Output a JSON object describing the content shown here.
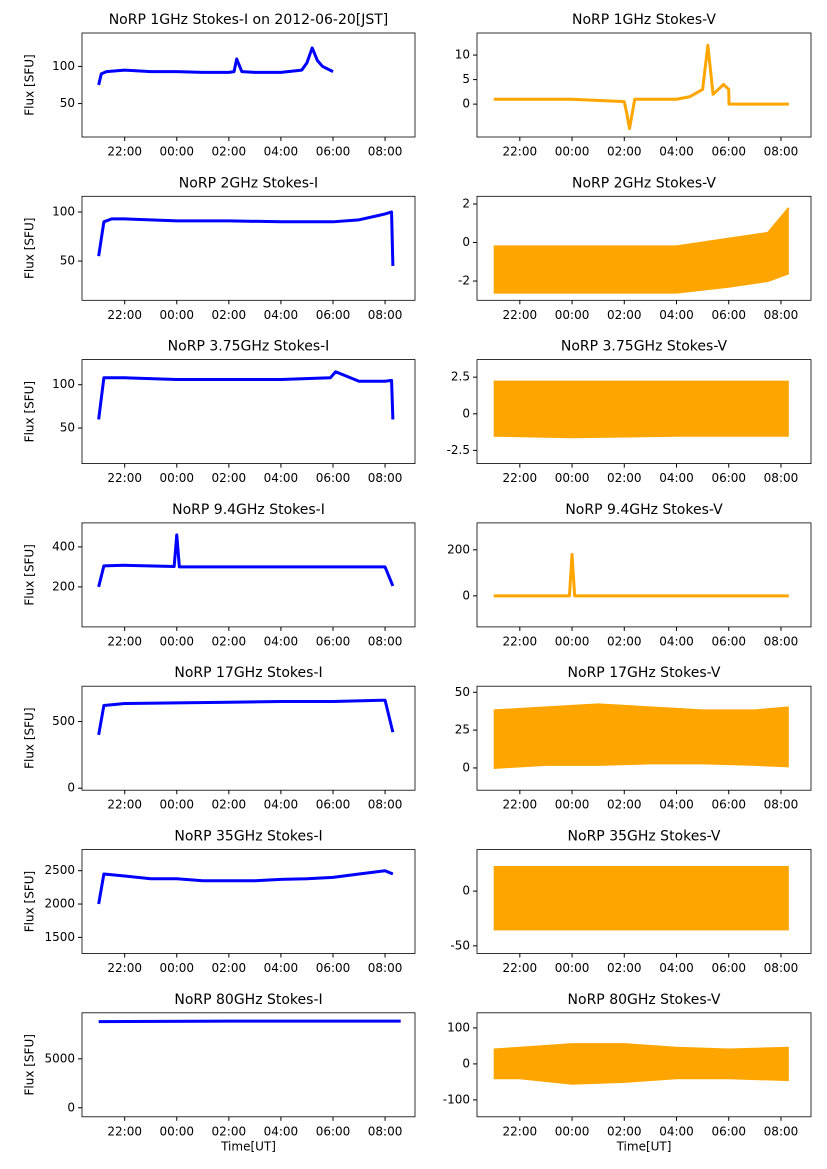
{
  "chart_data": [
    {
      "type": "line",
      "title": "NoRP 1GHz Stokes-I on 2012-06-20[JST]",
      "ylabel": "Flux [SFU]",
      "color": "#0000ff",
      "x": [
        21.0,
        21.1,
        21.3,
        22,
        23,
        24,
        25,
        26,
        26.2,
        26.3,
        26.5,
        27,
        28,
        28.8,
        29.0,
        29.2,
        29.4,
        29.6,
        30.0
      ],
      "values": [
        75,
        90,
        93,
        95,
        93,
        93,
        92,
        92,
        93,
        110,
        93,
        92,
        92,
        95,
        105,
        125,
        108,
        100,
        93
      ],
      "xlim": [
        20.36,
        33.15
      ],
      "xticks": [
        {
          "value": 22,
          "label": "22:00"
        },
        {
          "value": 24,
          "label": "00:00"
        },
        {
          "value": 26,
          "label": "02:00"
        },
        {
          "value": 28,
          "label": "04:00"
        },
        {
          "value": 30,
          "label": "06:00"
        },
        {
          "value": 32,
          "label": "08:00"
        }
      ],
      "ylim": [
        5,
        145
      ],
      "yticks": [
        50,
        100
      ]
    },
    {
      "type": "line",
      "title": "NoRP 1GHz Stokes-V",
      "color": "#ffa500",
      "x": [
        21.0,
        22,
        24,
        26,
        26.1,
        26.2,
        26.4,
        27,
        28,
        28.5,
        29,
        29.2,
        29.4,
        29.6,
        29.8,
        30.0,
        30.01,
        32.3
      ],
      "values": [
        1,
        1,
        1,
        0.5,
        -2,
        -5,
        1,
        1,
        1,
        1.5,
        3,
        12,
        2,
        3,
        4,
        3,
        0,
        0
      ],
      "xlim": [
        20.36,
        33.15
      ],
      "xticks": [
        {
          "value": 22,
          "label": "22:00"
        },
        {
          "value": 24,
          "label": "00:00"
        },
        {
          "value": 26,
          "label": "02:00"
        },
        {
          "value": 28,
          "label": "04:00"
        },
        {
          "value": 30,
          "label": "06:00"
        },
        {
          "value": 32,
          "label": "08:00"
        }
      ],
      "ylim": [
        -6.7,
        14.5
      ],
      "yticks": [
        0,
        5,
        10
      ]
    },
    {
      "type": "line",
      "title": "NoRP 2GHz Stokes-I",
      "ylabel": "Flux [SFU]",
      "color": "#0000ff",
      "x": [
        21.0,
        21.2,
        21.5,
        22,
        24,
        26,
        28,
        30,
        31,
        32,
        32.25,
        32.3
      ],
      "values": [
        55,
        90,
        93,
        93,
        91,
        91,
        90,
        90,
        92,
        98,
        100,
        45
      ],
      "xlim": [
        20.36,
        33.15
      ],
      "xticks": [
        {
          "value": 22,
          "label": "22:00"
        },
        {
          "value": 24,
          "label": "00:00"
        },
        {
          "value": 26,
          "label": "02:00"
        },
        {
          "value": 28,
          "label": "04:00"
        },
        {
          "value": 30,
          "label": "06:00"
        },
        {
          "value": 32,
          "label": "08:00"
        }
      ],
      "ylim": [
        10,
        116
      ],
      "yticks": [
        50,
        100
      ]
    },
    {
      "type": "band",
      "title": "NoRP 2GHz Stokes-V",
      "color": "#ffa500",
      "x": [
        21,
        24,
        28,
        30,
        31.5,
        32.3
      ],
      "low": [
        -2.6,
        -2.6,
        -2.6,
        -2.3,
        -2,
        -1.6
      ],
      "high": [
        -0.2,
        -0.2,
        -0.2,
        0.2,
        0.5,
        1.8
      ],
      "xlim": [
        20.36,
        33.15
      ],
      "xticks": [
        {
          "value": 22,
          "label": "22:00"
        },
        {
          "value": 24,
          "label": "00:00"
        },
        {
          "value": 26,
          "label": "02:00"
        },
        {
          "value": 28,
          "label": "04:00"
        },
        {
          "value": 30,
          "label": "06:00"
        },
        {
          "value": 32,
          "label": "08:00"
        }
      ],
      "ylim": [
        -3,
        2.4
      ],
      "yticks": [
        -2,
        0,
        2
      ]
    },
    {
      "type": "line",
      "title": "NoRP 3.75GHz Stokes-I",
      "ylabel": "Flux [SFU]",
      "color": "#0000ff",
      "x": [
        21.0,
        21.2,
        22,
        24,
        26,
        28,
        29.9,
        30.1,
        31,
        32,
        32.25,
        32.3
      ],
      "values": [
        60,
        108,
        108,
        106,
        106,
        106,
        108,
        115,
        104,
        104,
        105,
        60
      ],
      "xlim": [
        20.36,
        33.15
      ],
      "xticks": [
        {
          "value": 22,
          "label": "22:00"
        },
        {
          "value": 24,
          "label": "00:00"
        },
        {
          "value": 26,
          "label": "02:00"
        },
        {
          "value": 28,
          "label": "04:00"
        },
        {
          "value": 30,
          "label": "06:00"
        },
        {
          "value": 32,
          "label": "08:00"
        }
      ],
      "ylim": [
        9,
        129
      ],
      "yticks": [
        50,
        100
      ]
    },
    {
      "type": "band",
      "title": "NoRP 3.75GHz Stokes-V",
      "color": "#ffa500",
      "x": [
        21,
        24,
        28,
        32.3
      ],
      "low": [
        -1.5,
        -1.6,
        -1.5,
        -1.5
      ],
      "high": [
        2.2,
        2.2,
        2.2,
        2.2
      ],
      "xlim": [
        20.36,
        33.15
      ],
      "xticks": [
        {
          "value": 22,
          "label": "22:00"
        },
        {
          "value": 24,
          "label": "00:00"
        },
        {
          "value": 26,
          "label": "02:00"
        },
        {
          "value": 28,
          "label": "04:00"
        },
        {
          "value": 30,
          "label": "06:00"
        },
        {
          "value": 32,
          "label": "08:00"
        }
      ],
      "ylim": [
        -3.4,
        3.7
      ],
      "yticks": [
        -2.5,
        0.0,
        2.5
      ]
    },
    {
      "type": "line",
      "title": "NoRP 9.4GHz Stokes-I",
      "ylabel": "Flux [SFU]",
      "color": "#0000ff",
      "x": [
        21.0,
        21.2,
        22,
        23.9,
        24.0,
        24.1,
        26,
        28,
        30,
        32,
        32.3
      ],
      "values": [
        200,
        305,
        308,
        302,
        460,
        300,
        300,
        300,
        300,
        300,
        205
      ],
      "xlim": [
        20.36,
        33.15
      ],
      "xticks": [
        {
          "value": 22,
          "label": "22:00"
        },
        {
          "value": 24,
          "label": "00:00"
        },
        {
          "value": 26,
          "label": "02:00"
        },
        {
          "value": 28,
          "label": "04:00"
        },
        {
          "value": 30,
          "label": "06:00"
        },
        {
          "value": 32,
          "label": "08:00"
        }
      ],
      "ylim": [
        0,
        520
      ],
      "yticks": [
        200,
        400
      ]
    },
    {
      "type": "line",
      "title": "NoRP 9.4GHz Stokes-V",
      "color": "#ffa500",
      "x": [
        21,
        23.9,
        24.0,
        24.1,
        32.3
      ],
      "values": [
        0,
        0,
        180,
        0,
        0
      ],
      "xlim": [
        20.36,
        33.15
      ],
      "xticks": [
        {
          "value": 22,
          "label": "22:00"
        },
        {
          "value": 24,
          "label": "00:00"
        },
        {
          "value": 26,
          "label": "02:00"
        },
        {
          "value": 28,
          "label": "04:00"
        },
        {
          "value": 30,
          "label": "06:00"
        },
        {
          "value": 32,
          "label": "08:00"
        }
      ],
      "ylim": [
        -135,
        317
      ],
      "yticks": [
        0,
        200
      ]
    },
    {
      "type": "line",
      "title": "NoRP 17GHz Stokes-I",
      "ylabel": "Flux [SFU]",
      "color": "#0000ff",
      "x": [
        21.0,
        21.2,
        22,
        24,
        26,
        28,
        30,
        32,
        32.3
      ],
      "values": [
        400,
        620,
        635,
        640,
        645,
        650,
        650,
        660,
        420
      ],
      "xlim": [
        20.36,
        33.15
      ],
      "xticks": [
        {
          "value": 22,
          "label": "22:00"
        },
        {
          "value": 24,
          "label": "00:00"
        },
        {
          "value": 26,
          "label": "02:00"
        },
        {
          "value": 28,
          "label": "04:00"
        },
        {
          "value": 30,
          "label": "06:00"
        },
        {
          "value": 32,
          "label": "08:00"
        }
      ],
      "ylim": [
        -15,
        765
      ],
      "yticks": [
        0,
        500
      ]
    },
    {
      "type": "band",
      "title": "NoRP 17GHz Stokes-V",
      "color": "#ffa500",
      "x": [
        21,
        23,
        25,
        27,
        29,
        31,
        32.3
      ],
      "low": [
        0,
        2,
        2,
        3,
        3,
        2,
        1
      ],
      "high": [
        38,
        40,
        42,
        40,
        38,
        38,
        40
      ],
      "xlim": [
        20.36,
        33.15
      ],
      "xticks": [
        {
          "value": 22,
          "label": "22:00"
        },
        {
          "value": 24,
          "label": "00:00"
        },
        {
          "value": 26,
          "label": "02:00"
        },
        {
          "value": 28,
          "label": "04:00"
        },
        {
          "value": 30,
          "label": "06:00"
        },
        {
          "value": 32,
          "label": "08:00"
        }
      ],
      "ylim": [
        -14.7,
        54
      ],
      "yticks": [
        0,
        25,
        50
      ]
    },
    {
      "type": "line",
      "title": "NoRP 35GHz Stokes-I",
      "ylabel": "Flux [SFU]",
      "color": "#0000ff",
      "x": [
        21.0,
        21.2,
        22,
        23,
        24,
        25,
        26,
        27,
        28,
        29,
        30,
        31,
        32,
        32.3
      ],
      "values": [
        2000,
        2450,
        2420,
        2380,
        2380,
        2350,
        2350,
        2350,
        2370,
        2380,
        2400,
        2450,
        2500,
        2450
      ],
      "xlim": [
        20.36,
        33.15
      ],
      "xticks": [
        {
          "value": 22,
          "label": "22:00"
        },
        {
          "value": 24,
          "label": "00:00"
        },
        {
          "value": 26,
          "label": "02:00"
        },
        {
          "value": 28,
          "label": "04:00"
        },
        {
          "value": 30,
          "label": "06:00"
        },
        {
          "value": 32,
          "label": "08:00"
        }
      ],
      "ylim": [
        1258,
        2818
      ],
      "yticks": [
        1500,
        2000,
        2500
      ]
    },
    {
      "type": "band",
      "title": "NoRP 35GHz Stokes-V",
      "color": "#ffa500",
      "x": [
        21,
        32.3
      ],
      "low": [
        -35,
        -35
      ],
      "high": [
        22,
        22
      ],
      "xlim": [
        20.36,
        33.15
      ],
      "xticks": [
        {
          "value": 22,
          "label": "22:00"
        },
        {
          "value": 24,
          "label": "00:00"
        },
        {
          "value": 26,
          "label": "02:00"
        },
        {
          "value": 28,
          "label": "04:00"
        },
        {
          "value": 30,
          "label": "06:00"
        },
        {
          "value": 32,
          "label": "08:00"
        }
      ],
      "ylim": [
        -57,
        38
      ],
      "yticks": [
        -50,
        0
      ]
    },
    {
      "type": "line",
      "title": "NoRP 80GHz Stokes-I",
      "ylabel": "Flux [SFU]",
      "xlabel": "Time[UT]",
      "color": "#0000ff",
      "x": [
        21,
        26,
        32.6
      ],
      "values": [
        8800,
        8850,
        8850
      ],
      "xlim": [
        20.36,
        33.15
      ],
      "xticks": [
        {
          "value": 22,
          "label": "22:00"
        },
        {
          "value": 24,
          "label": "00:00"
        },
        {
          "value": 26,
          "label": "02:00"
        },
        {
          "value": 28,
          "label": "04:00"
        },
        {
          "value": 30,
          "label": "06:00"
        },
        {
          "value": 32,
          "label": "08:00"
        }
      ],
      "ylim": [
        -920,
        9700
      ],
      "yticks": [
        0,
        5000
      ]
    },
    {
      "type": "band",
      "title": "NoRP 80GHz Stokes-V",
      "xlabel": "Time[UT]",
      "color": "#ffa500",
      "x": [
        21,
        22,
        24,
        26,
        28,
        30,
        32.3
      ],
      "low": [
        -40,
        -40,
        -55,
        -50,
        -40,
        -40,
        -45
      ],
      "high": [
        40,
        45,
        55,
        55,
        45,
        40,
        45
      ],
      "xlim": [
        20.36,
        33.15
      ],
      "xticks": [
        {
          "value": 22,
          "label": "22:00"
        },
        {
          "value": 24,
          "label": "00:00"
        },
        {
          "value": 26,
          "label": "02:00"
        },
        {
          "value": 28,
          "label": "04:00"
        },
        {
          "value": 30,
          "label": "06:00"
        },
        {
          "value": 32,
          "label": "08:00"
        }
      ],
      "ylim": [
        -147,
        142
      ],
      "yticks": [
        -100,
        0,
        100
      ]
    }
  ]
}
